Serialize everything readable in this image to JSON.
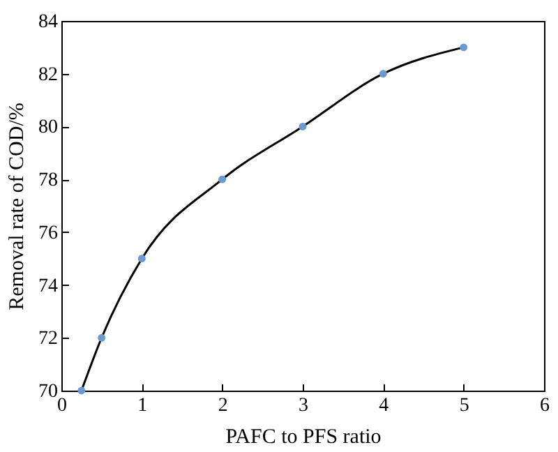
{
  "chart_data": {
    "type": "line",
    "xlabel": "PAFC to PFS ratio",
    "ylabel": "Removal rate of COD/%",
    "x": [
      0.25,
      0.5,
      1,
      2,
      3,
      4,
      5
    ],
    "series": [
      {
        "type": "line",
        "color": "#000000",
        "marker": "none",
        "values": [
          70,
          72,
          75,
          78,
          80,
          82,
          83
        ]
      },
      {
        "type": "scatter",
        "color": "#6a9ad0",
        "marker": "circle",
        "values": [
          70,
          72,
          75,
          78,
          80,
          82,
          83
        ]
      }
    ],
    "xlim": [
      0,
      6
    ],
    "xticks": [
      0,
      1,
      2,
      3,
      4,
      5,
      6
    ],
    "ylim": [
      70,
      84
    ],
    "yticks": [
      70,
      72,
      74,
      76,
      78,
      80,
      82,
      84
    ],
    "grid": false
  }
}
